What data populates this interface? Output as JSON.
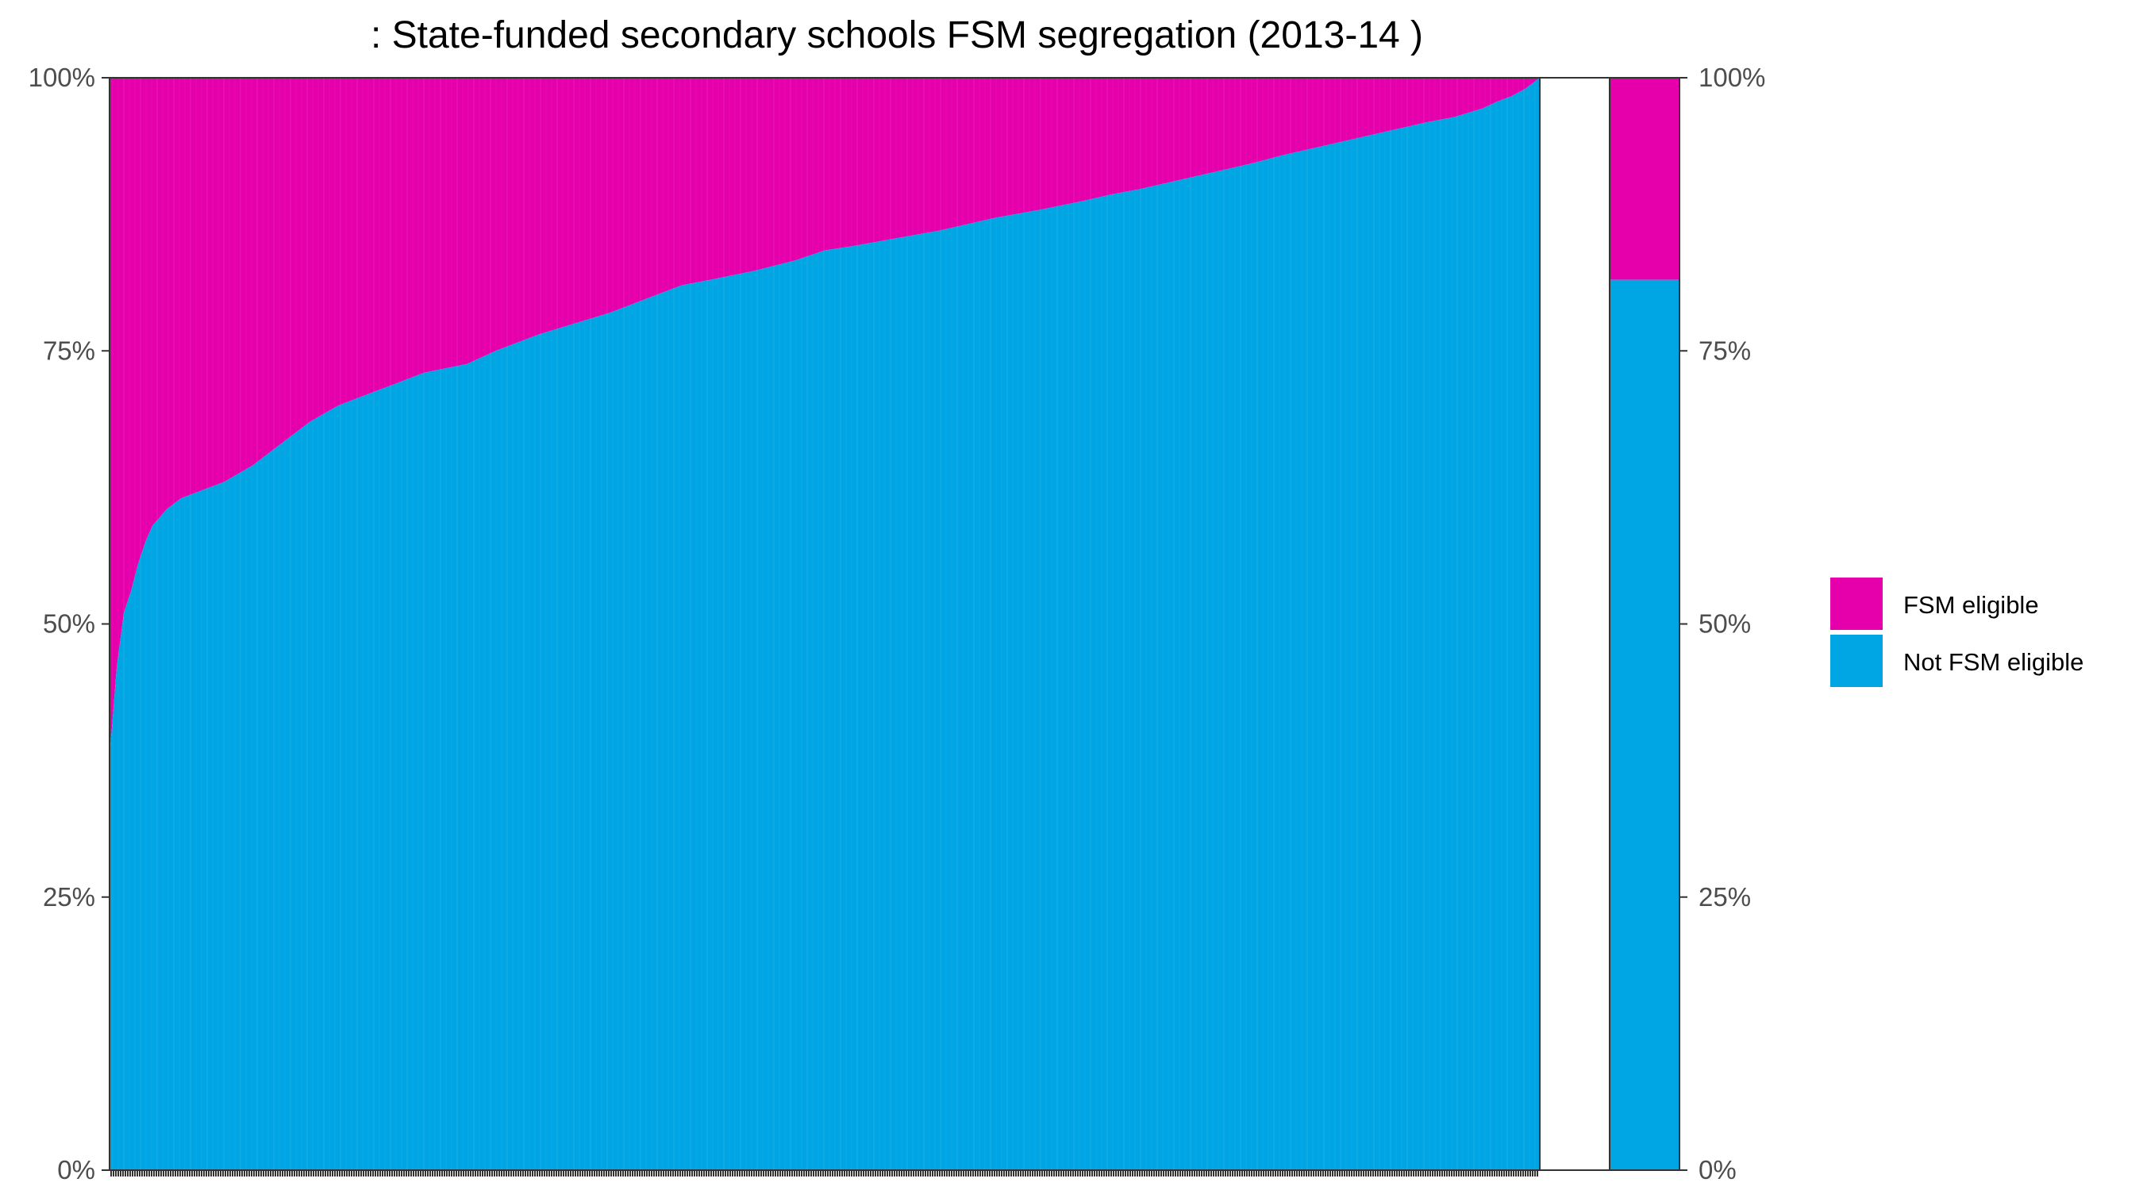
{
  "chart_data": {
    "type": "bar",
    "stacked": true,
    "normalized": true,
    "title": ": State-funded secondary schools FSM segregation (2013-14 )",
    "xlabel": "",
    "ylabel": "",
    "ylim": [
      0,
      100
    ],
    "y_ticks": [
      "0%",
      "25%",
      "50%",
      "75%",
      "100%"
    ],
    "x_tick_labels_shown": false,
    "grid": false,
    "legend_placement": "right",
    "series": [
      {
        "name": "FSM eligible",
        "color": "#e600ac"
      },
      {
        "name": "Not FSM eligible",
        "color": "#00a5e3"
      }
    ],
    "schools_not_fsm_share_percentile_curve": [
      [
        0,
        38
      ],
      [
        0.2,
        41
      ],
      [
        0.5,
        46
      ],
      [
        1,
        51
      ],
      [
        1.5,
        53
      ],
      [
        2,
        55.5
      ],
      [
        2.5,
        57.5
      ],
      [
        3,
        59
      ],
      [
        4,
        60.5
      ],
      [
        5,
        61.5
      ],
      [
        6,
        62
      ],
      [
        8,
        63
      ],
      [
        10,
        64.5
      ],
      [
        12,
        66.5
      ],
      [
        14,
        68.5
      ],
      [
        16,
        70
      ],
      [
        18,
        71
      ],
      [
        20,
        72
      ],
      [
        22,
        73
      ],
      [
        25,
        73.8
      ],
      [
        27,
        75
      ],
      [
        30,
        76.5
      ],
      [
        32,
        77.3
      ],
      [
        35,
        78.5
      ],
      [
        38,
        80
      ],
      [
        40,
        81
      ],
      [
        42,
        81.5
      ],
      [
        45,
        82.3
      ],
      [
        48,
        83.3
      ],
      [
        50,
        84.2
      ],
      [
        52,
        84.6
      ],
      [
        55,
        85.3
      ],
      [
        58,
        86
      ],
      [
        60,
        86.6
      ],
      [
        62,
        87.2
      ],
      [
        65,
        87.9
      ],
      [
        68,
        88.7
      ],
      [
        70,
        89.3
      ],
      [
        72,
        89.8
      ],
      [
        75,
        90.7
      ],
      [
        78,
        91.6
      ],
      [
        80,
        92.2
      ],
      [
        82,
        92.9
      ],
      [
        84,
        93.5
      ],
      [
        86,
        94.1
      ],
      [
        88,
        94.7
      ],
      [
        90,
        95.3
      ],
      [
        92,
        95.9
      ],
      [
        94,
        96.4
      ],
      [
        96,
        97.2
      ],
      [
        97,
        97.8
      ],
      [
        98,
        98.3
      ],
      [
        99,
        99
      ],
      [
        99.5,
        99.5
      ],
      [
        100,
        100
      ]
    ],
    "overall": {
      "not_fsm_eligible": 81.5,
      "fsm_eligible": 18.5
    }
  }
}
